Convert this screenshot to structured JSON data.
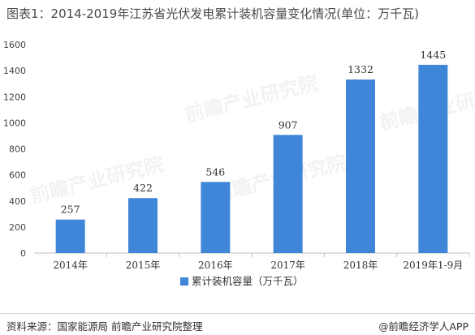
{
  "title": "图表1：2014-2019年江苏省光伏发电累计装机容量变化情况(单位：万千瓦)",
  "chart_data": {
    "type": "bar",
    "categories": [
      "2014年",
      "2015年",
      "2016年",
      "2017年",
      "2018年",
      "2019年1-9月"
    ],
    "series": [
      {
        "name": "累计装机容量（万千瓦）",
        "values": [
          257,
          422,
          546,
          907,
          1332,
          1445
        ]
      }
    ],
    "ylim": [
      0,
      1600
    ],
    "yticks": [
      "0",
      "200",
      "400",
      "600",
      "800",
      "1000",
      "1200",
      "1400",
      "1600"
    ],
    "grid": false,
    "legend_position": "bottom-center",
    "bar_color": "#3f86d8"
  },
  "footer": {
    "source": "资料来源：国家能源局 前瞻产业研究院整理",
    "brand_symbol": "@",
    "brand": "前瞻经济学人APP"
  },
  "watermark": "前瞻产业研究院"
}
